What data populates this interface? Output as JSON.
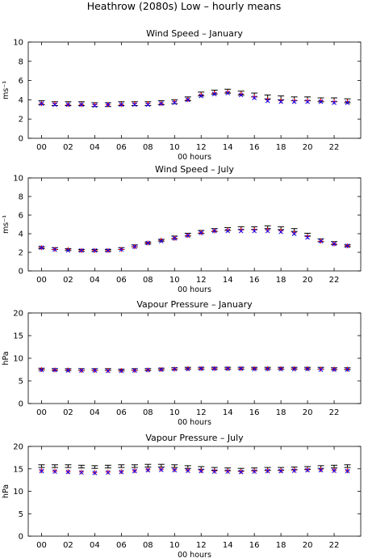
{
  "page": {
    "title": "Heathrow (2080s) Low – hourly means"
  },
  "colors": {
    "observed": "#000000",
    "model_a": "#ff0000",
    "model_b": "#0000ff",
    "axes": "#000000"
  },
  "chart_data": [
    {
      "type": "scatter",
      "title": "Wind Speed – January",
      "xlabel": "00 hours",
      "ylabel": "ms⁻¹",
      "ylim": [
        0,
        10
      ],
      "yticks": [
        0,
        2,
        4,
        6,
        8,
        10
      ],
      "xtick_labels": [
        "00",
        "02",
        "04",
        "06",
        "08",
        "10",
        "12",
        "14",
        "16",
        "18",
        "20",
        "22"
      ],
      "x": [
        0,
        1,
        2,
        3,
        4,
        5,
        6,
        7,
        8,
        9,
        10,
        11,
        12,
        13,
        14,
        15,
        16,
        17,
        18,
        19,
        20,
        21,
        22,
        23
      ],
      "series": [
        {
          "marker": "errorbar",
          "color": "#000000",
          "values": [
            3.7,
            3.6,
            3.6,
            3.6,
            3.5,
            3.5,
            3.6,
            3.6,
            3.6,
            3.7,
            3.8,
            4.1,
            4.6,
            4.8,
            4.9,
            4.7,
            4.5,
            4.3,
            4.2,
            4.1,
            4.1,
            4.0,
            4.0,
            3.9
          ],
          "error": [
            0.2,
            0.2,
            0.2,
            0.2,
            0.2,
            0.2,
            0.2,
            0.2,
            0.2,
            0.2,
            0.2,
            0.2,
            0.2,
            0.2,
            0.2,
            0.2,
            0.2,
            0.2,
            0.2,
            0.2,
            0.2,
            0.2,
            0.2,
            0.2
          ]
        },
        {
          "marker": "plus",
          "color": "#ff0000",
          "values": [
            3.6,
            3.6,
            3.5,
            3.5,
            3.5,
            3.5,
            3.5,
            3.6,
            3.6,
            3.6,
            3.8,
            4.0,
            4.5,
            4.7,
            4.8,
            4.6,
            4.3,
            4.0,
            3.9,
            3.9,
            3.9,
            3.9,
            3.8,
            3.8
          ]
        },
        {
          "marker": "x",
          "color": "#0000ff",
          "values": [
            3.6,
            3.5,
            3.5,
            3.5,
            3.4,
            3.5,
            3.5,
            3.5,
            3.5,
            3.6,
            3.7,
            4.0,
            4.4,
            4.6,
            4.7,
            4.5,
            4.2,
            3.9,
            3.8,
            3.8,
            3.8,
            3.8,
            3.7,
            3.7
          ]
        }
      ]
    },
    {
      "type": "scatter",
      "title": "Wind Speed – July",
      "xlabel": "00 hours",
      "ylabel": "ms⁻¹",
      "ylim": [
        0,
        10
      ],
      "yticks": [
        0,
        2,
        4,
        6,
        8,
        10
      ],
      "xtick_labels": [
        "00",
        "02",
        "04",
        "06",
        "08",
        "10",
        "12",
        "14",
        "16",
        "18",
        "20",
        "22"
      ],
      "x": [
        0,
        1,
        2,
        3,
        4,
        5,
        6,
        7,
        8,
        9,
        10,
        11,
        12,
        13,
        14,
        15,
        16,
        17,
        18,
        19,
        20,
        21,
        22,
        23
      ],
      "series": [
        {
          "marker": "errorbar",
          "color": "#000000",
          "values": [
            2.5,
            2.4,
            2.3,
            2.2,
            2.2,
            2.2,
            2.4,
            2.7,
            3.0,
            3.3,
            3.6,
            3.9,
            4.2,
            4.4,
            4.5,
            4.6,
            4.6,
            4.7,
            4.6,
            4.4,
            3.9,
            3.3,
            3.0,
            2.7
          ],
          "error": [
            0.1,
            0.1,
            0.1,
            0.1,
            0.1,
            0.1,
            0.1,
            0.1,
            0.1,
            0.1,
            0.15,
            0.15,
            0.15,
            0.15,
            0.15,
            0.15,
            0.15,
            0.15,
            0.15,
            0.15,
            0.15,
            0.15,
            0.15,
            0.1
          ]
        },
        {
          "marker": "plus",
          "color": "#ff0000",
          "values": [
            2.5,
            2.3,
            2.3,
            2.2,
            2.2,
            2.2,
            2.3,
            2.6,
            3.0,
            3.3,
            3.5,
            3.8,
            4.1,
            4.3,
            4.4,
            4.4,
            4.4,
            4.4,
            4.3,
            4.1,
            3.7,
            3.2,
            2.9,
            2.7
          ]
        },
        {
          "marker": "x",
          "color": "#0000ff",
          "values": [
            2.5,
            2.3,
            2.2,
            2.2,
            2.2,
            2.2,
            2.3,
            2.6,
            3.0,
            3.2,
            3.5,
            3.8,
            4.1,
            4.3,
            4.3,
            4.3,
            4.3,
            4.3,
            4.2,
            4.0,
            3.6,
            3.2,
            2.9,
            2.7
          ]
        }
      ]
    },
    {
      "type": "scatter",
      "title": "Vapour Pressure – January",
      "xlabel": "00 hours",
      "ylabel": "hPa",
      "ylim": [
        0,
        20
      ],
      "yticks": [
        0,
        5,
        10,
        15,
        20
      ],
      "xtick_labels": [
        "00",
        "02",
        "04",
        "06",
        "08",
        "10",
        "12",
        "14",
        "16",
        "18",
        "20",
        "22"
      ],
      "x": [
        0,
        1,
        2,
        3,
        4,
        5,
        6,
        7,
        8,
        9,
        10,
        11,
        12,
        13,
        14,
        15,
        16,
        17,
        18,
        19,
        20,
        21,
        22,
        23
      ],
      "series": [
        {
          "marker": "errorbar",
          "color": "#000000",
          "values": [
            7.6,
            7.5,
            7.5,
            7.5,
            7.5,
            7.5,
            7.4,
            7.5,
            7.5,
            7.6,
            7.7,
            7.8,
            7.8,
            7.8,
            7.8,
            7.8,
            7.8,
            7.8,
            7.8,
            7.8,
            7.8,
            7.8,
            7.7,
            7.7
          ],
          "error": [
            0.2,
            0.2,
            0.2,
            0.2,
            0.2,
            0.2,
            0.2,
            0.2,
            0.2,
            0.2,
            0.2,
            0.2,
            0.2,
            0.2,
            0.2,
            0.2,
            0.2,
            0.2,
            0.2,
            0.2,
            0.2,
            0.2,
            0.2,
            0.2
          ]
        },
        {
          "marker": "plus",
          "color": "#ff0000",
          "values": [
            7.5,
            7.4,
            7.4,
            7.3,
            7.3,
            7.3,
            7.3,
            7.3,
            7.4,
            7.5,
            7.6,
            7.7,
            7.7,
            7.7,
            7.7,
            7.7,
            7.7,
            7.7,
            7.7,
            7.7,
            7.7,
            7.6,
            7.6,
            7.6
          ]
        },
        {
          "marker": "x",
          "color": "#0000ff",
          "values": [
            7.4,
            7.4,
            7.3,
            7.3,
            7.3,
            7.2,
            7.2,
            7.3,
            7.4,
            7.5,
            7.6,
            7.6,
            7.7,
            7.7,
            7.7,
            7.7,
            7.6,
            7.6,
            7.6,
            7.6,
            7.6,
            7.5,
            7.5,
            7.5
          ]
        }
      ]
    },
    {
      "type": "scatter",
      "title": "Vapour Pressure – July",
      "xlabel": "00 hours",
      "ylabel": "hPa",
      "ylim": [
        0,
        20
      ],
      "yticks": [
        0,
        5,
        10,
        15,
        20
      ],
      "xtick_labels": [
        "00",
        "02",
        "04",
        "06",
        "08",
        "10",
        "12",
        "14",
        "16",
        "18",
        "20",
        "22"
      ],
      "x": [
        0,
        1,
        2,
        3,
        4,
        5,
        6,
        7,
        8,
        9,
        10,
        11,
        12,
        13,
        14,
        15,
        16,
        17,
        18,
        19,
        20,
        21,
        22,
        23
      ],
      "series": [
        {
          "marker": "errorbar",
          "color": "#000000",
          "values": [
            15.6,
            15.6,
            15.6,
            15.5,
            15.4,
            15.5,
            15.6,
            15.6,
            15.7,
            15.7,
            15.6,
            15.4,
            15.2,
            15.0,
            14.9,
            14.8,
            14.9,
            15.0,
            15.0,
            15.1,
            15.2,
            15.4,
            15.5,
            15.6
          ],
          "error": [
            0.3,
            0.3,
            0.3,
            0.3,
            0.3,
            0.3,
            0.3,
            0.3,
            0.3,
            0.3,
            0.3,
            0.3,
            0.3,
            0.3,
            0.3,
            0.3,
            0.3,
            0.3,
            0.3,
            0.3,
            0.3,
            0.3,
            0.3,
            0.3
          ]
        },
        {
          "marker": "plus",
          "color": "#ff0000",
          "values": [
            14.6,
            14.5,
            14.4,
            14.3,
            14.2,
            14.3,
            14.4,
            14.6,
            14.8,
            14.9,
            14.8,
            14.7,
            14.6,
            14.5,
            14.5,
            14.4,
            14.5,
            14.6,
            14.6,
            14.7,
            14.8,
            14.8,
            14.7,
            14.6
          ]
        },
        {
          "marker": "x",
          "color": "#0000ff",
          "values": [
            14.5,
            14.4,
            14.3,
            14.2,
            14.1,
            14.2,
            14.3,
            14.5,
            14.7,
            14.8,
            14.7,
            14.6,
            14.5,
            14.4,
            14.4,
            14.3,
            14.4,
            14.5,
            14.5,
            14.6,
            14.7,
            14.7,
            14.6,
            14.5
          ]
        }
      ]
    }
  ]
}
